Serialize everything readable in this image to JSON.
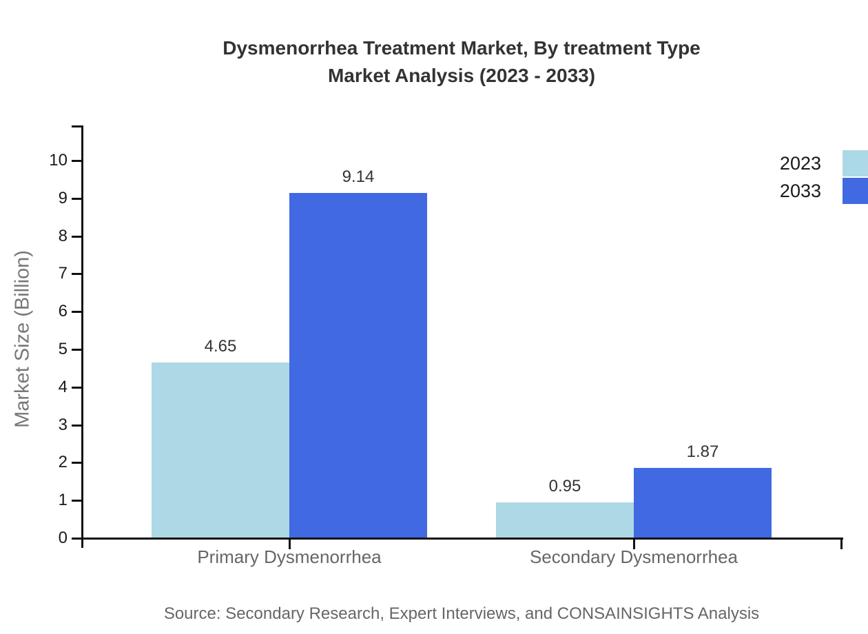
{
  "chart_data": {
    "type": "bar",
    "title": "Dysmenorrhea Treatment Market, By treatment Type Market Analysis (2023 - 2033)",
    "title_lines": [
      "Dysmenorrhea Treatment Market, By treatment Type",
      "Market Analysis (2023 - 2033)"
    ],
    "ylabel": "Market Size (Billion)",
    "xlabel": "",
    "ylim": [
      0,
      10
    ],
    "yticks": [
      0,
      1,
      2,
      3,
      4,
      5,
      6,
      7,
      8,
      9,
      10
    ],
    "grid": false,
    "legend_position": "top-right",
    "categories": [
      "Primary Dysmenorrhea",
      "Secondary Dysmenorrhea"
    ],
    "series": [
      {
        "name": "2023",
        "color": "#ADD8E6",
        "values": [
          4.65,
          0.95
        ]
      },
      {
        "name": "2033",
        "color": "#4169E1",
        "values": [
          9.14,
          1.87
        ]
      }
    ],
    "value_label_format": "2dp"
  },
  "source_note": "Source: Secondary Research, Expert Interviews, and CONSAINSIGHTS Analysis",
  "colors": {
    "background": "#ffffff",
    "axis": "#111111",
    "title_text": "#333333",
    "tick_label_text": "#1a1a1a",
    "category_label_text": "#666666",
    "y_axis_title_text": "#777777",
    "value_label_text": "#333333",
    "source_text": "#666666",
    "series_2023": "#ADD8E6",
    "series_2033": "#4169E1"
  }
}
